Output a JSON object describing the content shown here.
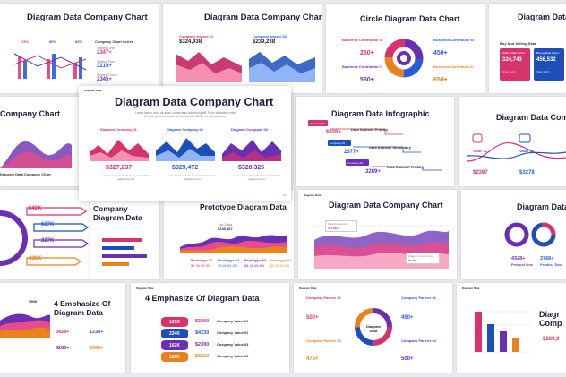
{
  "slides": {
    "s1": {
      "title": "Diagram Data Company Chart",
      "stats": [
        "2347+",
        "3215+",
        "2345+"
      ],
      "pct": [
        "73%",
        "86%",
        "83%"
      ],
      "labels": [
        "Series One",
        "Series Two",
        "Series Three"
      ],
      "heading": "Company Chart Series"
    },
    "s2": {
      "title": "Diagram Data Company Chart",
      "label_a": "Company Aspect 01",
      "label_b": "Company Aspect 02",
      "value_a": "$324,938",
      "value_b": "$239,238"
    },
    "s3": {
      "title": "Circle Diagram Data Chart",
      "contrib": [
        "Business Contributor A",
        "Business Contributor B",
        "Business Contributor C",
        "Business Contributor D"
      ],
      "values": [
        "250+",
        "450+",
        "550+",
        "650+"
      ]
    },
    "s4": {
      "title": "Diagram Data",
      "heading": "Buy And Selling Data",
      "card_a": "Selling Rate Action",
      "card_b": "Buying Rate Action",
      "value_a": "324,743",
      "value_b": "456,532",
      "sub_a": "234,743",
      "sub_b": "356,832"
    },
    "s5": {
      "title": "Company Chart",
      "text": "Diagram Data Company Chart"
    },
    "s6": {
      "header": "Diagram Data",
      "title": "Diagram Data Company Chart",
      "intro": "Lorem ipsum dolor sit amet, consectetur adipiscing elit. Proin bibendum enim in tortor pretium accumsan finibus. Ut efficitur eu est quis sem.",
      "labels": [
        "Diagram Company 01",
        "Diagram Company 02",
        "Diagram Company 03"
      ],
      "values": [
        "$327,237",
        "$329,472",
        "$328,325"
      ],
      "desc": "Lorem ipsum dolor sit amet, consectetur adipiscing elit.",
      "page": "19"
    },
    "s7": {
      "title": "Diagram Data Infographic",
      "labels": [
        "Company 01",
        "Company 02",
        "Company 03"
      ],
      "values": [
        "$326+",
        "2377+",
        "3289+"
      ],
      "notes": [
        "Data Statistic Primary",
        "Data Statistic Secondary",
        "Data Statistic Tertiary"
      ]
    },
    "s8": {
      "title": "Diagram Data Comp",
      "labels": [
        "Value 01",
        "Value 02"
      ],
      "values": [
        "$2367",
        "$3278"
      ]
    },
    "s9": {
      "values": [
        "543K",
        "637K",
        "327K",
        "436K"
      ]
    },
    "s10": {
      "title": "Company",
      "title2": "Diagram Data"
    },
    "s11": {
      "title": "Prototype Diagram Data",
      "top": "Top Data",
      "top_value": "$245,467",
      "labels": [
        "Prototype 01",
        "Prototype 02",
        "Prototype 03",
        "Prototype 04"
      ],
      "values": [
        "$2,3k 35,5%",
        "$3,2k 42,3%",
        "$4,2k 45,8%",
        "$2,7k 31,2%"
      ]
    },
    "s12": {
      "header": "Diagram Data",
      "title": "Diagram Data Company Chart",
      "note_a": "Data Comparison",
      "note_a_value": "373,200+",
      "note_b": "Diagram Lorem Data",
      "note_b_value": "$2,432+"
    },
    "s13": {
      "title": "Diagram Data",
      "values": [
        "4328+",
        "3768+"
      ],
      "labels": [
        "Product One",
        "Product Two"
      ]
    },
    "s14": {
      "title": "4 Emphasize Of",
      "title2": "Diagram Data",
      "values": [
        "3428+",
        "1238+",
        "4283+",
        "2345+"
      ],
      "badge": "$56K"
    },
    "s15": {
      "header": "Diagram Data",
      "title": "4 Emphasize Of Diagram Data",
      "values": [
        "129K",
        "234K",
        "102K",
        "116K"
      ],
      "prices": [
        "$3209",
        "$4230",
        "$2390",
        "$3210"
      ],
      "labels": [
        "Company Value 01",
        "Company Value 02",
        "Company Value 03",
        "Company Value 04"
      ]
    },
    "s16": {
      "header": "Diagram Data",
      "labels": [
        "Company Partner 01",
        "Company Partner 02",
        "Company Partner 03",
        "Company Partner 04"
      ],
      "values": [
        "500+",
        "450+",
        "475+",
        "500+"
      ],
      "center": "Diagram Data"
    },
    "s17": {
      "header": "Diagram Data",
      "title": "Diagr",
      "title2": "Comp",
      "value": "$269,3"
    }
  }
}
